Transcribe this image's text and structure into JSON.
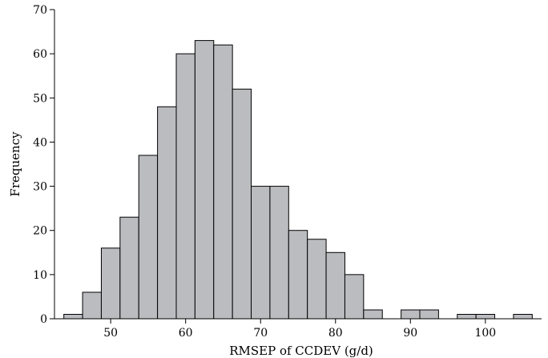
{
  "chart_data": {
    "type": "bar",
    "title": "",
    "xlabel": "RMSEP of CCDEV (g/d)",
    "ylabel": "Frequency",
    "bin_width": 2.5,
    "bin_left_edges": [
      43.75,
      46.25,
      48.75,
      51.25,
      53.75,
      56.25,
      58.75,
      61.25,
      63.75,
      66.25,
      68.75,
      71.25,
      73.75,
      76.25,
      78.75,
      81.25,
      83.75,
      86.25,
      88.75,
      91.25,
      93.75,
      96.25,
      98.75,
      101.25,
      103.75
    ],
    "values": [
      1,
      6,
      16,
      23,
      37,
      48,
      60,
      63,
      62,
      52,
      30,
      30,
      20,
      18,
      15,
      10,
      2,
      0,
      2,
      2,
      0,
      1,
      1,
      0,
      1
    ],
    "xlim": [
      42.5,
      107.5
    ],
    "ylim": [
      0,
      70
    ],
    "x_ticks": [
      50,
      60,
      70,
      80,
      90,
      100
    ],
    "y_ticks": [
      0,
      10,
      20,
      30,
      40,
      50,
      60,
      70
    ],
    "grid": false,
    "legend": "none"
  }
}
